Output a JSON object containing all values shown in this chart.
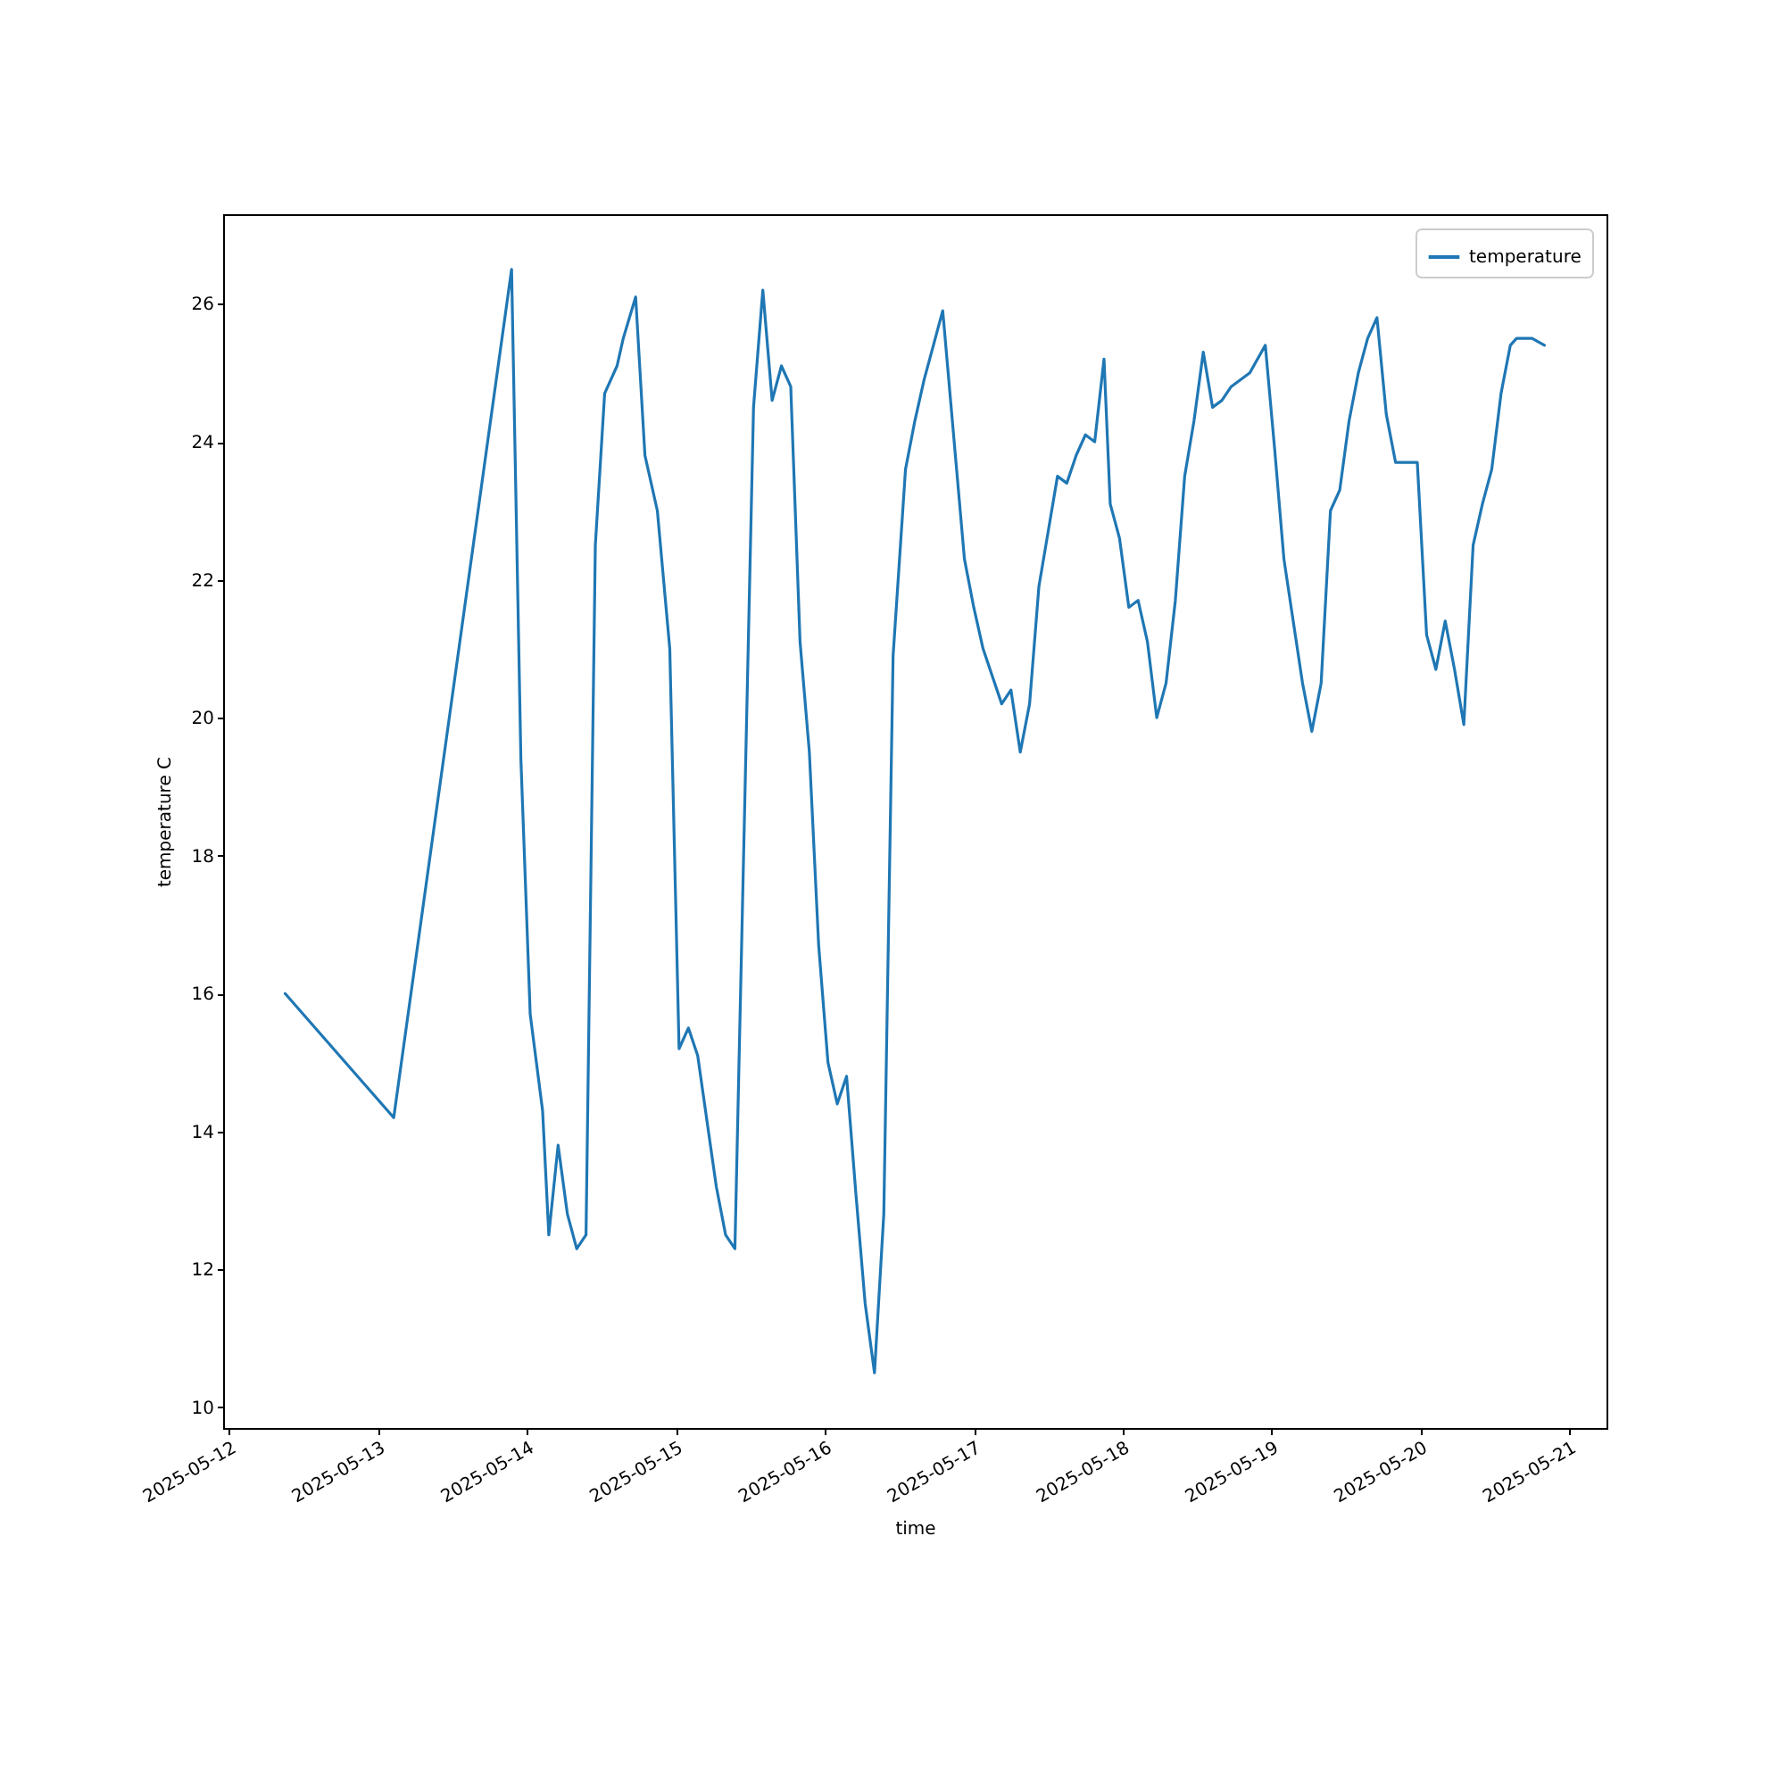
{
  "chart_data": {
    "type": "line",
    "xlabel": "time",
    "ylabel": "temperature C",
    "x": [
      "2025-05-12T09:00",
      "2025-05-13T02:30",
      "2025-05-13T21:30",
      "2025-05-13T23:00",
      "2025-05-14T00:30",
      "2025-05-14T02:30",
      "2025-05-14T03:30",
      "2025-05-14T05:00",
      "2025-05-14T06:30",
      "2025-05-14T08:00",
      "2025-05-14T09:30",
      "2025-05-14T11:00",
      "2025-05-14T12:30",
      "2025-05-14T14:30",
      "2025-05-14T15:30",
      "2025-05-14T17:30",
      "2025-05-14T19:00",
      "2025-05-14T21:00",
      "2025-05-14T23:00",
      "2025-05-15T00:30",
      "2025-05-15T02:00",
      "2025-05-15T03:30",
      "2025-05-15T06:30",
      "2025-05-15T08:00",
      "2025-05-15T09:30",
      "2025-05-15T12:30",
      "2025-05-15T14:00",
      "2025-05-15T15:30",
      "2025-05-15T17:00",
      "2025-05-15T18:30",
      "2025-05-15T20:00",
      "2025-05-15T21:30",
      "2025-05-15T23:00",
      "2025-05-16T00:30",
      "2025-05-16T02:00",
      "2025-05-16T03:30",
      "2025-05-16T05:00",
      "2025-05-16T06:30",
      "2025-05-16T08:00",
      "2025-05-16T09:30",
      "2025-05-16T11:00",
      "2025-05-16T13:00",
      "2025-05-16T14:30",
      "2025-05-16T16:00",
      "2025-05-16T17:30",
      "2025-05-16T19:00",
      "2025-05-16T22:30",
      "2025-05-17T00:00",
      "2025-05-17T01:30",
      "2025-05-17T03:00",
      "2025-05-17T04:30",
      "2025-05-17T06:00",
      "2025-05-17T07:30",
      "2025-05-17T09:00",
      "2025-05-17T10:30",
      "2025-05-17T12:00",
      "2025-05-17T13:30",
      "2025-05-17T15:00",
      "2025-05-17T16:30",
      "2025-05-17T18:00",
      "2025-05-17T19:30",
      "2025-05-17T21:00",
      "2025-05-17T22:00",
      "2025-05-17T23:30",
      "2025-05-18T01:00",
      "2025-05-18T02:30",
      "2025-05-18T04:00",
      "2025-05-18T05:30",
      "2025-05-18T07:00",
      "2025-05-18T08:30",
      "2025-05-18T10:00",
      "2025-05-18T11:30",
      "2025-05-18T13:00",
      "2025-05-18T14:30",
      "2025-05-18T16:00",
      "2025-05-18T17:30",
      "2025-05-18T19:00",
      "2025-05-18T20:30",
      "2025-05-18T23:00",
      "2025-05-19T00:30",
      "2025-05-19T02:00",
      "2025-05-19T03:30",
      "2025-05-19T05:00",
      "2025-05-19T06:30",
      "2025-05-19T08:00",
      "2025-05-19T09:30",
      "2025-05-19T11:00",
      "2025-05-19T12:30",
      "2025-05-19T14:00",
      "2025-05-19T15:30",
      "2025-05-19T17:00",
      "2025-05-19T18:30",
      "2025-05-19T20:00",
      "2025-05-19T21:30",
      "2025-05-19T23:30",
      "2025-05-20T01:00",
      "2025-05-20T02:30",
      "2025-05-20T04:00",
      "2025-05-20T05:30",
      "2025-05-20T07:00",
      "2025-05-20T08:30",
      "2025-05-20T10:00",
      "2025-05-20T11:30",
      "2025-05-20T13:00",
      "2025-05-20T14:30",
      "2025-05-20T15:30",
      "2025-05-20T18:00",
      "2025-05-20T20:00"
    ],
    "series": [
      {
        "name": "temperature",
        "color": "#1f77b4",
        "values": [
          16.0,
          14.2,
          26.5,
          19.4,
          15.7,
          14.3,
          12.5,
          13.8,
          12.8,
          12.3,
          12.5,
          22.5,
          24.7,
          25.1,
          25.5,
          26.1,
          23.8,
          23.0,
          21.0,
          15.2,
          15.5,
          15.1,
          13.2,
          12.5,
          12.3,
          24.5,
          26.2,
          24.6,
          25.1,
          24.8,
          21.1,
          19.5,
          16.7,
          15.0,
          14.4,
          14.8,
          13.1,
          11.5,
          10.5,
          12.8,
          20.9,
          23.6,
          24.3,
          24.9,
          25.4,
          25.9,
          22.3,
          21.6,
          21.0,
          20.6,
          20.2,
          20.4,
          19.5,
          20.2,
          21.9,
          22.7,
          23.5,
          23.4,
          23.8,
          24.1,
          24.0,
          25.2,
          23.1,
          22.6,
          21.6,
          21.7,
          21.1,
          20.0,
          20.5,
          21.7,
          23.5,
          24.3,
          25.3,
          24.5,
          24.6,
          24.8,
          24.9,
          25.0,
          25.4,
          23.9,
          22.3,
          21.4,
          20.5,
          19.8,
          20.5,
          23.0,
          23.3,
          24.3,
          25.0,
          25.5,
          25.8,
          24.4,
          23.7,
          23.7,
          23.7,
          21.2,
          20.7,
          21.4,
          20.7,
          19.9,
          22.5,
          23.1,
          23.6,
          24.7,
          25.4,
          25.5,
          25.5,
          25.4
        ]
      }
    ],
    "xlim": [
      "2025-05-11T23:00",
      "2025-05-21T06:00"
    ],
    "xticks": [
      "2025-05-12",
      "2025-05-13",
      "2025-05-14",
      "2025-05-15",
      "2025-05-16",
      "2025-05-17",
      "2025-05-18",
      "2025-05-19",
      "2025-05-20",
      "2025-05-21"
    ],
    "ylim": [
      9.7,
      27.3
    ],
    "yticks": [
      10,
      12,
      14,
      16,
      18,
      20,
      22,
      24,
      26
    ],
    "legend": "top right",
    "grid": false
  }
}
